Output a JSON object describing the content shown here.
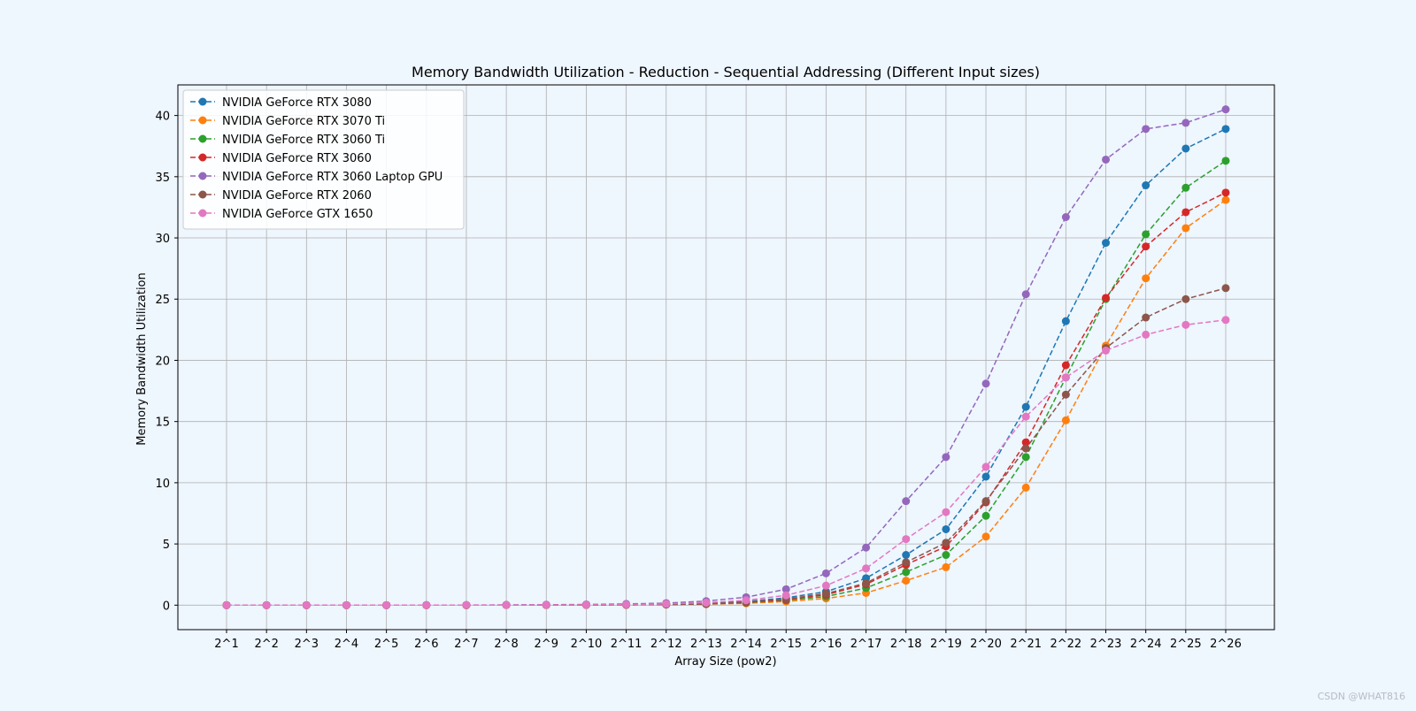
{
  "chart_data": {
    "type": "line",
    "title": "Memory Bandwidth Utilization - Reduction - Sequential Addressing (Different Input sizes)",
    "xlabel": "Array Size (pow2)",
    "ylabel": "Memory Bandwidth Utilization",
    "categories": [
      "2^1",
      "2^2",
      "2^3",
      "2^4",
      "2^5",
      "2^6",
      "2^7",
      "2^8",
      "2^9",
      "2^10",
      "2^11",
      "2^12",
      "2^13",
      "2^14",
      "2^15",
      "2^16",
      "2^17",
      "2^18",
      "2^19",
      "2^20",
      "2^21",
      "2^22",
      "2^23",
      "2^24",
      "2^25",
      "2^26"
    ],
    "ylim": [
      -2,
      42.5
    ],
    "yticks": [
      0,
      5,
      10,
      15,
      20,
      25,
      30,
      35,
      40
    ],
    "grid": true,
    "legend_position": "top-left",
    "marker": "circle",
    "line_style": "dashed",
    "series": [
      {
        "name": "NVIDIA GeForce RTX 3080",
        "color": "#1f77b4",
        "values": [
          0.0,
          0.0,
          0.0,
          0.0,
          0.0,
          0.0,
          0.01,
          0.01,
          0.02,
          0.03,
          0.05,
          0.08,
          0.15,
          0.3,
          0.6,
          1.1,
          2.2,
          4.1,
          6.2,
          10.5,
          16.2,
          23.2,
          29.6,
          34.3,
          37.3,
          38.9
        ]
      },
      {
        "name": "NVIDIA GeForce RTX 3070 Ti",
        "color": "#ff7f0e",
        "values": [
          0.0,
          0.0,
          0.0,
          0.0,
          0.0,
          0.0,
          0.0,
          0.01,
          0.01,
          0.02,
          0.03,
          0.05,
          0.08,
          0.15,
          0.3,
          0.55,
          1.0,
          2.0,
          3.1,
          5.6,
          9.6,
          15.1,
          21.2,
          26.7,
          30.8,
          33.1
        ]
      },
      {
        "name": "NVIDIA GeForce RTX 3060 Ti",
        "color": "#2ca02c",
        "values": [
          0.0,
          0.0,
          0.0,
          0.0,
          0.0,
          0.0,
          0.0,
          0.01,
          0.01,
          0.02,
          0.03,
          0.05,
          0.1,
          0.2,
          0.4,
          0.7,
          1.4,
          2.7,
          4.1,
          7.3,
          12.1,
          18.6,
          25.0,
          30.3,
          34.1,
          36.3
        ]
      },
      {
        "name": "NVIDIA GeForce RTX 3060",
        "color": "#d62728",
        "values": [
          0.0,
          0.0,
          0.0,
          0.0,
          0.0,
          0.0,
          0.0,
          0.01,
          0.01,
          0.02,
          0.03,
          0.05,
          0.1,
          0.22,
          0.45,
          0.85,
          1.7,
          3.3,
          4.8,
          8.4,
          13.3,
          19.6,
          25.1,
          29.3,
          32.1,
          33.7
        ]
      },
      {
        "name": "NVIDIA GeForce RTX 3060 Laptop GPU",
        "color": "#9467bd",
        "values": [
          0.0,
          0.0,
          0.0,
          0.0,
          0.0,
          0.01,
          0.01,
          0.02,
          0.04,
          0.06,
          0.1,
          0.17,
          0.33,
          0.65,
          1.3,
          2.6,
          4.7,
          8.5,
          12.1,
          18.1,
          25.4,
          31.7,
          36.4,
          38.9,
          39.4,
          40.5
        ]
      },
      {
        "name": "NVIDIA GeForce RTX 2060",
        "color": "#8c564b",
        "values": [
          0.0,
          0.0,
          0.0,
          0.0,
          0.0,
          0.0,
          0.0,
          0.01,
          0.01,
          0.02,
          0.03,
          0.05,
          0.1,
          0.25,
          0.5,
          0.95,
          1.8,
          3.5,
          5.1,
          8.5,
          12.8,
          17.2,
          21.0,
          23.5,
          25.0,
          25.9
        ]
      },
      {
        "name": "NVIDIA GeForce GTX 1650",
        "color": "#e377c2",
        "values": [
          0.0,
          0.0,
          0.0,
          0.0,
          0.0,
          0.0,
          0.01,
          0.01,
          0.02,
          0.03,
          0.05,
          0.1,
          0.2,
          0.4,
          0.8,
          1.6,
          3.0,
          5.4,
          7.6,
          11.3,
          15.4,
          18.6,
          20.8,
          22.1,
          22.9,
          23.3
        ]
      }
    ]
  },
  "watermark": "CSDN @WHAT816"
}
